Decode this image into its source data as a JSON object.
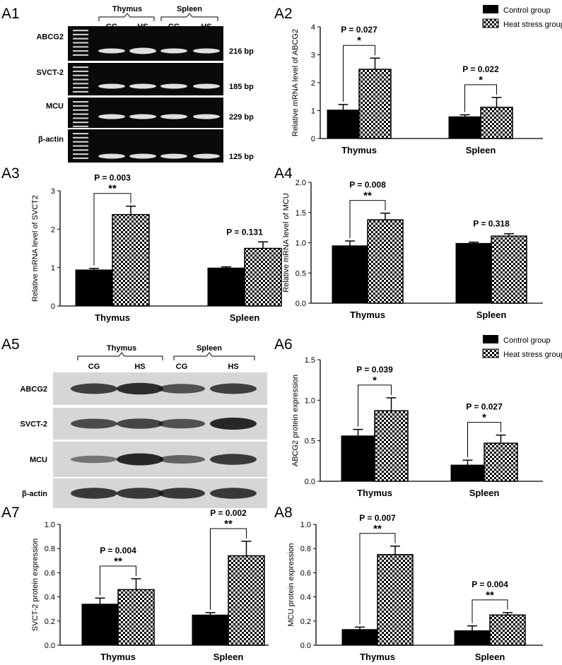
{
  "panel_labels": [
    "A1",
    "A2",
    "A3",
    "A4",
    "A5",
    "A6",
    "A7",
    "A8"
  ],
  "legend": {
    "control": "Control group",
    "heat": "Heat stress group"
  },
  "colors": {
    "control": "#000000",
    "heat_pattern": "checkered black/white"
  },
  "gel_rna": {
    "tissues": [
      "Thymus",
      "Spleen"
    ],
    "lanes": [
      "CG",
      "HS",
      "CG",
      "HS"
    ],
    "rows": [
      {
        "gene": "ABCG2",
        "size": "216 bp"
      },
      {
        "gene": "SVCT-2",
        "size": "185 bp"
      },
      {
        "gene": "MCU",
        "size": "229 bp"
      },
      {
        "gene": "β-actin",
        "size": "125 bp"
      }
    ]
  },
  "gel_protein": {
    "tissues": [
      "Thymus",
      "Spleen"
    ],
    "lanes": [
      "CG",
      "HS",
      "CG",
      "HS"
    ],
    "rows": [
      {
        "gene": "ABCG2",
        "intensity": [
          0.7,
          0.85,
          0.55,
          0.7
        ]
      },
      {
        "gene": "SVCT-2",
        "intensity": [
          0.6,
          0.65,
          0.55,
          0.9
        ]
      },
      {
        "gene": "MCU",
        "intensity": [
          0.25,
          0.9,
          0.4,
          0.75
        ]
      },
      {
        "gene": "β-actin",
        "intensity": [
          0.75,
          0.75,
          0.75,
          0.75
        ]
      }
    ]
  },
  "chart_data": [
    {
      "id": "A2",
      "type": "bar",
      "ylabel": "Relative mRNA  level of ABCG2",
      "ylim": [
        0,
        4
      ],
      "yticks": [
        0,
        1,
        2,
        3,
        4
      ],
      "categories": [
        "Thymus",
        "Spleen"
      ],
      "series": [
        {
          "name": "Control group",
          "values": [
            1.02,
            0.78
          ],
          "errors": [
            0.2,
            0.07
          ]
        },
        {
          "name": "Heat stress group",
          "values": [
            2.48,
            1.12
          ],
          "errors": [
            0.4,
            0.35
          ]
        }
      ],
      "annotations": [
        {
          "p": "P = 0.027",
          "sig": "*"
        },
        {
          "p": "P = 0.022",
          "sig": "*"
        }
      ]
    },
    {
      "id": "A3",
      "type": "bar",
      "ylabel": "Relative mRNA  level of SVCT2",
      "ylim": [
        0,
        3
      ],
      "yticks": [
        0,
        1,
        2,
        3
      ],
      "categories": [
        "Thymus",
        "Spleen"
      ],
      "series": [
        {
          "name": "Control group",
          "values": [
            0.94,
            0.99
          ],
          "errors": [
            0.04,
            0.03
          ]
        },
        {
          "name": "Heat stress group",
          "values": [
            2.38,
            1.5
          ],
          "errors": [
            0.22,
            0.17
          ]
        }
      ],
      "annotations": [
        {
          "p": "P = 0.003",
          "sig": "**"
        },
        {
          "p": "P = 0.131",
          "sig": ""
        }
      ]
    },
    {
      "id": "A4",
      "type": "bar",
      "ylabel": "Relative mRNA  level of MCU",
      "ylim": [
        0,
        2
      ],
      "yticks": [
        0,
        0.5,
        1,
        1.5,
        2
      ],
      "tickfmt": 1,
      "categories": [
        "Thymus",
        "Spleen"
      ],
      "series": [
        {
          "name": "Control group",
          "values": [
            0.95,
            0.99
          ],
          "errors": [
            0.08,
            0.02
          ]
        },
        {
          "name": "Heat stress group",
          "values": [
            1.38,
            1.11
          ],
          "errors": [
            0.11,
            0.04
          ]
        }
      ],
      "annotations": [
        {
          "p": "P = 0.008",
          "sig": "**"
        },
        {
          "p": "P = 0.318",
          "sig": ""
        }
      ]
    },
    {
      "id": "A6",
      "type": "bar",
      "ylabel": "ABCG2 protein expression",
      "ylim": [
        0,
        1.5
      ],
      "yticks": [
        0,
        0.5,
        1,
        1.5
      ],
      "tickfmt": 1,
      "categories": [
        "Thymus",
        "Spleen"
      ],
      "series": [
        {
          "name": "Control group",
          "values": [
            0.56,
            0.2
          ],
          "errors": [
            0.08,
            0.06
          ]
        },
        {
          "name": "Heat stress group",
          "values": [
            0.87,
            0.47
          ],
          "errors": [
            0.16,
            0.1
          ]
        }
      ],
      "annotations": [
        {
          "p": "P = 0.039",
          "sig": "*"
        },
        {
          "p": "P = 0.027",
          "sig": "*"
        }
      ]
    },
    {
      "id": "A7",
      "type": "bar",
      "ylabel": "SVCT-2 protein expression",
      "ylim": [
        0,
        1
      ],
      "yticks": [
        0,
        0.2,
        0.4,
        0.6,
        0.8,
        1
      ],
      "tickfmt": 1,
      "categories": [
        "Thymus",
        "Spleen"
      ],
      "series": [
        {
          "name": "Control group",
          "values": [
            0.34,
            0.25
          ],
          "errors": [
            0.05,
            0.02
          ]
        },
        {
          "name": "Heat stress group",
          "values": [
            0.46,
            0.74
          ],
          "errors": [
            0.09,
            0.12
          ]
        }
      ],
      "annotations": [
        {
          "p": "P = 0.004",
          "sig": "**"
        },
        {
          "p": "P = 0.002",
          "sig": "**"
        }
      ]
    },
    {
      "id": "A8",
      "type": "bar",
      "ylabel": "MCU protein expression",
      "ylim": [
        0,
        1
      ],
      "yticks": [
        0,
        0.2,
        0.4,
        0.6,
        0.8,
        1
      ],
      "tickfmt": 1,
      "categories": [
        "Thymus",
        "Spleen"
      ],
      "series": [
        {
          "name": "Control group",
          "values": [
            0.13,
            0.12
          ],
          "errors": [
            0.02,
            0.04
          ]
        },
        {
          "name": "Heat stress group",
          "values": [
            0.75,
            0.25
          ],
          "errors": [
            0.07,
            0.02
          ]
        }
      ],
      "annotations": [
        {
          "p": "P = 0.007",
          "sig": "**"
        },
        {
          "p": "P = 0.004",
          "sig": "**"
        }
      ]
    }
  ]
}
